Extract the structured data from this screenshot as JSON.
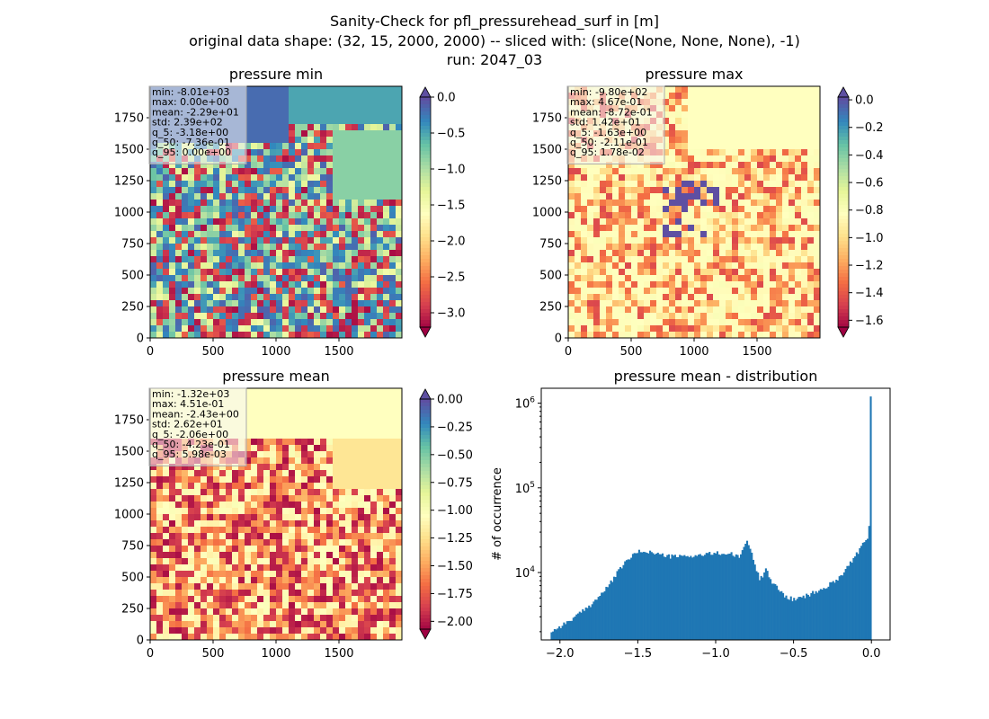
{
  "figure": {
    "title_lines": [
      "Sanity-Check for pfl_pressurehead_surf in [m]",
      "original data shape: (32, 15, 2000, 2000) -- sliced with: (slice(None, None, None), -1)",
      "run: 2047_03"
    ]
  },
  "chart_data": [
    {
      "type": "heatmap",
      "title": "pressure min",
      "colormap": "Spectral",
      "extent_x": [
        0,
        2000
      ],
      "extent_y": [
        0,
        2000
      ],
      "x_ticks": [
        "0",
        "500",
        "1000",
        "1500"
      ],
      "x_tick_values": [
        0,
        500,
        1000,
        1500
      ],
      "y_ticks": [
        "0",
        "250",
        "500",
        "750",
        "1000",
        "1250",
        "1500",
        "1750"
      ],
      "y_tick_values": [
        0,
        250,
        500,
        750,
        1000,
        1250,
        1500,
        1750
      ],
      "colorbar": {
        "range": [
          -3.2,
          0.0
        ],
        "ticks": [
          "0.0",
          "−0.5",
          "−1.0",
          "−1.5",
          "−2.0",
          "−2.5",
          "−3.0"
        ],
        "tick_values": [
          0.0,
          -0.5,
          -1.0,
          -1.5,
          -2.0,
          -2.5,
          -3.0
        ],
        "extend": "both"
      },
      "stats": [
        "min: -8.01e+03",
        "max: 0.00e+00",
        "mean: -2.29e+01",
        "std: 2.39e+02",
        "q_5: -3.18e+00",
        "q_50: -7.36e-01",
        "q_95: 0.00e+00"
      ]
    },
    {
      "type": "heatmap",
      "title": "pressure max",
      "colormap": "Spectral",
      "extent_x": [
        0,
        2000
      ],
      "extent_y": [
        0,
        2000
      ],
      "x_ticks": [
        "0",
        "500",
        "1000",
        "1500"
      ],
      "x_tick_values": [
        0,
        500,
        1000,
        1500
      ],
      "y_ticks": [
        "0",
        "250",
        "500",
        "750",
        "1000",
        "1250",
        "1500",
        "1750"
      ],
      "y_tick_values": [
        0,
        250,
        500,
        750,
        1000,
        1250,
        1500,
        1750
      ],
      "colorbar": {
        "range": [
          -1.65,
          0.02
        ],
        "ticks": [
          "0.0",
          "−0.2",
          "−0.4",
          "−0.6",
          "−0.8",
          "−1.0",
          "−1.2",
          "−1.4",
          "−1.6"
        ],
        "tick_values": [
          0.0,
          -0.2,
          -0.4,
          -0.6,
          -0.8,
          -1.0,
          -1.2,
          -1.4,
          -1.6
        ],
        "extend": "both"
      },
      "stats": [
        "min: -9.80e+02",
        "max: 4.67e-01",
        "mean: -8.72e-01",
        "std: 1.42e+01",
        "q_5: -1.63e+00",
        "q_50: -2.11e-01",
        "q_95: 1.78e-02"
      ]
    },
    {
      "type": "heatmap",
      "title": "pressure mean",
      "colormap": "Spectral",
      "extent_x": [
        0,
        2000
      ],
      "extent_y": [
        0,
        2000
      ],
      "x_ticks": [
        "0",
        "500",
        "1000",
        "1500"
      ],
      "x_tick_values": [
        0,
        500,
        1000,
        1500
      ],
      "y_ticks": [
        "0",
        "250",
        "500",
        "750",
        "1000",
        "1250",
        "1500",
        "1750"
      ],
      "y_tick_values": [
        0,
        250,
        500,
        750,
        1000,
        1250,
        1500,
        1750
      ],
      "colorbar": {
        "range": [
          -2.07,
          0.0
        ],
        "ticks": [
          "0.00",
          "−0.25",
          "−0.50",
          "−0.75",
          "−1.00",
          "−1.25",
          "−1.50",
          "−1.75",
          "−2.00"
        ],
        "tick_values": [
          0.0,
          -0.25,
          -0.5,
          -0.75,
          -1.0,
          -1.25,
          -1.5,
          -1.75,
          -2.0
        ],
        "extend": "both"
      },
      "stats": [
        "min: -1.32e+03",
        "max: 4.51e-01",
        "mean: -2.43e+00",
        "std: 2.62e+01",
        "q_5: -2.06e+00",
        "q_50: -4.23e-01",
        "q_95: 5.98e-03"
      ]
    },
    {
      "type": "bar",
      "title": "pressure mean - distribution",
      "ylabel": "# of occurrence",
      "yscale": "log",
      "xlim": [
        -2.12,
        0.12
      ],
      "ylim": [
        1600,
        1500000
      ],
      "color": "#1f77b4",
      "x_ticks": [
        "−2.0",
        "−1.5",
        "−1.0",
        "−0.5",
        "0.0"
      ],
      "x_tick_values": [
        -2.0,
        -1.5,
        -1.0,
        -0.5,
        0.0
      ],
      "y_ticks": [
        {
          "base": "10",
          "exp": "4",
          "value": 10000
        },
        {
          "base": "10",
          "exp": "5",
          "value": 100000
        },
        {
          "base": "10",
          "exp": "6",
          "value": 1000000
        }
      ],
      "profile": {
        "x": [
          -2.06,
          -2.0,
          -1.9,
          -1.8,
          -1.7,
          -1.6,
          -1.55,
          -1.5,
          -1.45,
          -1.4,
          -1.3,
          -1.2,
          -1.1,
          -1.0,
          -0.9,
          -0.85,
          -0.82,
          -0.8,
          -0.77,
          -0.74,
          -0.72,
          -0.7,
          -0.68,
          -0.66,
          -0.64,
          -0.62,
          -0.6,
          -0.55,
          -0.5,
          -0.45,
          -0.4,
          -0.3,
          -0.2,
          -0.1,
          -0.05,
          -0.02,
          -0.01,
          0.0
        ],
        "y": [
          2000,
          2300,
          3000,
          4200,
          6500,
          12000,
          15000,
          17500,
          18000,
          17000,
          15500,
          15500,
          16000,
          17000,
          16500,
          15000,
          20000,
          24000,
          17000,
          11000,
          8500,
          9000,
          12000,
          9500,
          7500,
          7000,
          6500,
          5200,
          4800,
          5000,
          5500,
          6500,
          9000,
          16000,
          22000,
          26000,
          50000,
          1200000
        ]
      }
    }
  ]
}
